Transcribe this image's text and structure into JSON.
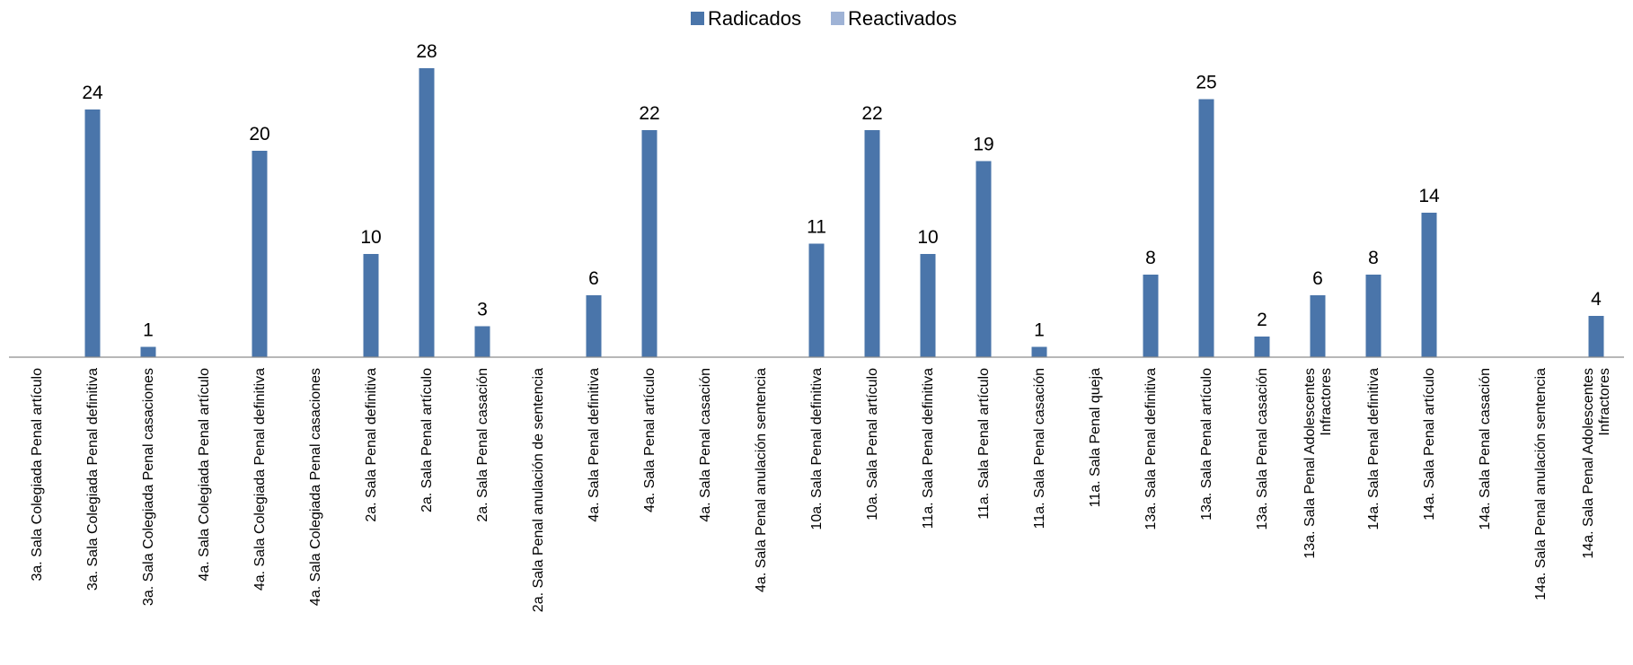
{
  "chart_data": {
    "type": "bar",
    "legend_position": "top",
    "grid": false,
    "ylim": [
      0,
      30
    ],
    "categories": [
      [
        "3a. Sala Colegiada Penal artículo"
      ],
      [
        "3a. Sala Colegiada Penal definitiva"
      ],
      [
        "3a. Sala Colegiada Penal casaciones"
      ],
      [
        "4a. Sala Colegiada Penal artículo"
      ],
      [
        "4a. Sala Colegiada Penal definitiva"
      ],
      [
        "4a. Sala Colegiada Penal casaciones"
      ],
      [
        "2a. Sala Penal definitiva"
      ],
      [
        "2a. Sala Penal artículo"
      ],
      [
        "2a. Sala Penal casación"
      ],
      [
        "2a. Sala Penal anulación de sentencia"
      ],
      [
        "4a. Sala Penal definitiva"
      ],
      [
        "4a. Sala Penal artículo"
      ],
      [
        "4a. Sala Penal casación"
      ],
      [
        "4a. Sala Penal anulación sentencia"
      ],
      [
        "10a. Sala Penal definitiva"
      ],
      [
        "10a. Sala Penal artículo"
      ],
      [
        "11a. Sala Penal definitiva"
      ],
      [
        "11a. Sala Penal artículo"
      ],
      [
        "11a. Sala Penal casación"
      ],
      [
        "11a. Sala Penal queja"
      ],
      [
        "13a. Sala Penal definitiva"
      ],
      [
        "13a. Sala Penal artículo"
      ],
      [
        "13a. Sala Penal casación"
      ],
      [
        "13a. Sala Penal Adolescentes",
        "Infractores"
      ],
      [
        "14a. Sala Penal definitiva"
      ],
      [
        "14a. Sala Penal artículo"
      ],
      [
        "14a. Sala Penal casación"
      ],
      [
        "14a. Sala Penal anulación sentencia"
      ],
      [
        "14a. Sala Penal Adolescentes",
        "Infractores"
      ]
    ],
    "series": [
      {
        "name": "Radicados",
        "color": "#4a75aa",
        "values": [
          null,
          24,
          1,
          null,
          20,
          null,
          10,
          28,
          3,
          null,
          6,
          22,
          null,
          null,
          11,
          22,
          10,
          19,
          1,
          null,
          8,
          25,
          2,
          6,
          8,
          14,
          null,
          null,
          4
        ]
      },
      {
        "name": "Reactivados",
        "color": "#9fb3d6",
        "values": [
          null,
          null,
          null,
          null,
          null,
          null,
          null,
          null,
          null,
          null,
          null,
          null,
          null,
          null,
          null,
          null,
          null,
          null,
          null,
          null,
          null,
          null,
          null,
          null,
          null,
          null,
          null,
          null,
          null
        ]
      }
    ]
  }
}
